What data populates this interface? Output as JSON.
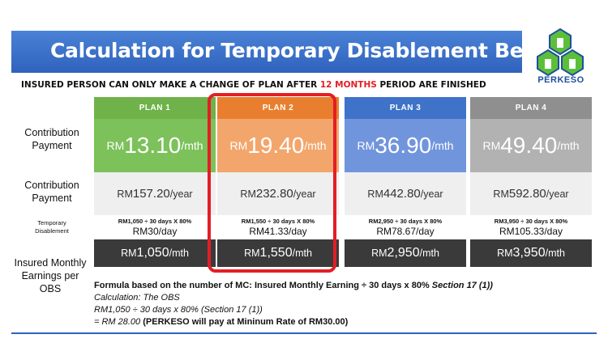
{
  "banner": {
    "title": "Calculation for Temporary Disablement Benefit"
  },
  "logo": {
    "text": "PERKESO",
    "icon": "perkeso-logo-icon"
  },
  "notice": {
    "before": "INSURED PERSON CAN ONLY MAKE A CHANGE OF PLAN AFTER ",
    "highlight": "12 MONTHS",
    "after": " PERIOD ARE FINISHED",
    "highlight_color": "#e31e24"
  },
  "row_labels": {
    "contribution_monthly": [
      "Contribution",
      "Payment"
    ],
    "contribution_yearly": [
      "Contribution",
      "Payment"
    ],
    "temporary": [
      "Temporary",
      "Disablement"
    ],
    "earnings": [
      "Insured Monthly",
      "Earnings  per",
      "OBS"
    ]
  },
  "plans": [
    {
      "name": "PLAN 1",
      "rm": "RM",
      "monthly": "13.10",
      "monthly_unit": "/mth",
      "yearly_rm": "RM",
      "yearly": "157.20",
      "yearly_unit": "/year",
      "formula": "RM1,050 ÷ 30 days X 80%",
      "per_day": "RM30/day",
      "earn_rm": "RM",
      "earn": "1,050",
      "earn_unit": "/mth"
    },
    {
      "name": "PLAN 2",
      "rm": "RM",
      "monthly": "19.40",
      "monthly_unit": "/mth",
      "yearly_rm": "RM",
      "yearly": "232.80",
      "yearly_unit": "/year",
      "formula": "RM1,550 ÷ 30 days X 80%",
      "per_day": "RM41.33/day",
      "earn_rm": "RM",
      "earn": "1,550",
      "earn_unit": "/mth"
    },
    {
      "name": "PLAN 3",
      "rm": "RM",
      "monthly": "36.90",
      "monthly_unit": "/mth",
      "yearly_rm": "RM",
      "yearly": "442.80",
      "yearly_unit": "/year",
      "formula": "RM2,950 ÷ 30 days X 80%",
      "per_day": "RM78.67/day",
      "earn_rm": "RM",
      "earn": "2,950",
      "earn_unit": "/mth"
    },
    {
      "name": "PLAN 4",
      "rm": "RM",
      "monthly": "49.40",
      "monthly_unit": "/mth",
      "yearly_rm": "RM",
      "yearly": "592.80",
      "yearly_unit": "/year",
      "formula": "RM3,950 ÷ 30 days X 80%",
      "per_day": "RM105.33/day",
      "earn_rm": "RM",
      "earn": "3,950",
      "earn_unit": "/mth"
    }
  ],
  "formula_block": {
    "line1": "Formula based on the number of MC: Insured Monthly Earning ÷ 30 days x 80% ",
    "line1_section": "Section 17 (1))",
    "line2": "Calculation: The OBS",
    "line3": "RM1,050 ÷ 30 days x 80% (Section 17 (1))",
    "line4_italic": "= RM 28.00",
    "line4_bold": " (PERKESO will pay at Mininum Rate of RM30.00)"
  }
}
